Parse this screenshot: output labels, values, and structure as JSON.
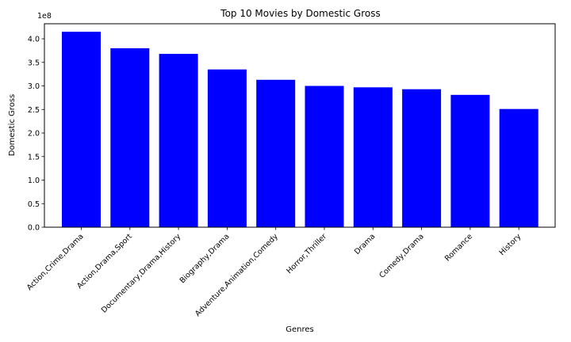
{
  "chart_data": {
    "type": "bar",
    "title": "Top 10 Movies by Domestic Gross",
    "xlabel": "Genres",
    "ylabel": "Domestic Gross",
    "y_offset_label": "1e8",
    "categories": [
      "Action,Crime,Drama",
      "Action,Drama,Sport",
      "Documentary,Drama,History",
      "Biography,Drama",
      "Adventure,Animation,Comedy",
      "Horror,Thriller",
      "Drama",
      "Comedy,Drama",
      "Romance",
      "History"
    ],
    "values": [
      415000000,
      380000000,
      368000000,
      335000000,
      313000000,
      300000000,
      297000000,
      293000000,
      281000000,
      251000000
    ],
    "ylim": [
      0,
      432000000
    ],
    "yticks": [
      0,
      50000000,
      100000000,
      150000000,
      200000000,
      250000000,
      300000000,
      350000000,
      400000000
    ],
    "ytick_labels": [
      "0.0",
      "0.5",
      "1.0",
      "1.5",
      "2.0",
      "2.5",
      "3.0",
      "3.5",
      "4.0"
    ],
    "bar_color": "#0000ff",
    "grid": false,
    "legend": "none"
  }
}
